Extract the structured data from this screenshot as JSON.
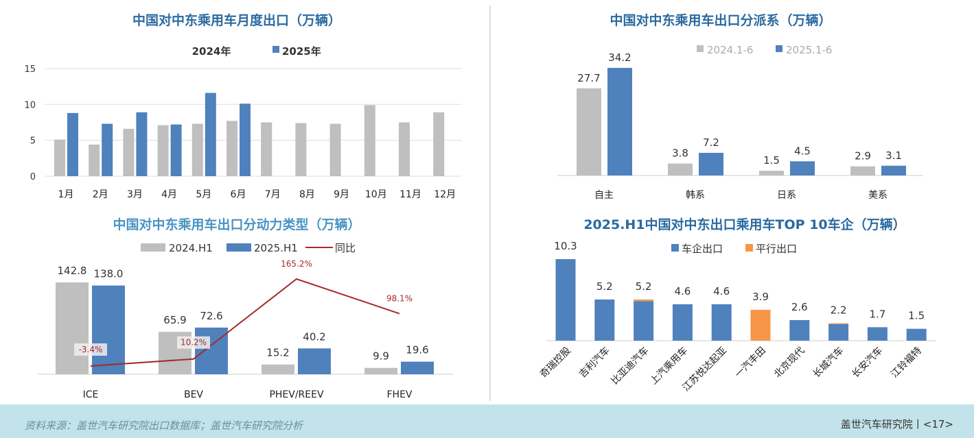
{
  "colors": {
    "gray": "#bfbfbf",
    "blue": "#4f81bd",
    "orange": "#f79646",
    "line": "#a52a2a"
  },
  "chart_data": [
    {
      "type": "bar",
      "title": "中国对中东乘用车月度出口（万辆）",
      "categories": [
        "1月",
        "2月",
        "3月",
        "4月",
        "5月",
        "6月",
        "7月",
        "8月",
        "9月",
        "10月",
        "11月",
        "12月"
      ],
      "series": [
        {
          "name": "2024年",
          "values": [
            5.1,
            4.4,
            6.6,
            7.1,
            7.3,
            7.7,
            7.5,
            7.4,
            7.3,
            9.9,
            7.5,
            8.9
          ]
        },
        {
          "name": "2025年",
          "values": [
            8.8,
            7.3,
            8.9,
            7.2,
            11.6,
            10.1,
            null,
            null,
            null,
            null,
            null,
            null
          ]
        }
      ],
      "yticks": [
        "0",
        "5",
        "10",
        "15"
      ],
      "ylim": [
        0,
        15
      ],
      "grid": true,
      "legend": "top"
    },
    {
      "type": "bar",
      "title": "中国对中东乘用车出口分派系（万辆）",
      "categories": [
        "自主",
        "韩系",
        "日系",
        "美系"
      ],
      "series": [
        {
          "name": "2024.1-6",
          "values": [
            27.7,
            3.8,
            1.5,
            2.9
          ],
          "labels": [
            "27.7",
            "3.8",
            "1.5",
            "2.9"
          ]
        },
        {
          "name": "2025.1-6",
          "values": [
            34.2,
            7.2,
            4.5,
            3.1
          ],
          "labels": [
            "34.2",
            "7.2",
            "4.5",
            "3.1"
          ]
        }
      ],
      "legend": "top"
    },
    {
      "type": "bar",
      "title": "中国对中东乘用车出口分动力类型（万辆）",
      "categories": [
        "ICE",
        "BEV",
        "PHEV/REEV",
        "FHEV"
      ],
      "series": [
        {
          "name": "2024.H1",
          "values": [
            142.8,
            65.9,
            15.2,
            9.9
          ],
          "labels": [
            "142.8",
            "65.9",
            "15.2",
            "9.9"
          ]
        },
        {
          "name": "2025.H1",
          "values": [
            138.0,
            72.6,
            40.2,
            19.6
          ],
          "labels": [
            "138.0",
            "72.6",
            "40.2",
            "19.6"
          ]
        },
        {
          "name": "同比",
          "type": "line",
          "values": [
            -3.4,
            10.2,
            165.2,
            98.1
          ],
          "labels": [
            "-3.4%",
            "10.2%",
            "165.2%",
            "98.1%"
          ]
        }
      ],
      "legend": "top"
    },
    {
      "type": "bar",
      "stacked": true,
      "title": "2025.H1中国对中东出口乘用车TOP 10车企（万辆）",
      "categories": [
        "奇瑞控股",
        "吉利汽车",
        "比亚迪汽车",
        "上汽乘用车",
        "江苏悦达起亚",
        "一汽丰田",
        "北京现代",
        "长城汽车",
        "长安汽车",
        "江铃福特"
      ],
      "series": [
        {
          "name": "车企出口",
          "values": [
            10.3,
            5.2,
            5.0,
            4.6,
            4.6,
            0,
            2.6,
            2.1,
            1.7,
            1.5
          ]
        },
        {
          "name": "平行出口",
          "values": [
            0,
            0,
            0.2,
            0,
            0,
            3.9,
            0,
            0.1,
            0,
            0
          ]
        }
      ],
      "totals": [
        "10.3",
        "5.2",
        "5.2",
        "4.6",
        "4.6",
        "3.9",
        "2.6",
        "2.2",
        "1.7",
        "1.5"
      ],
      "legend": "top"
    }
  ],
  "footer": {
    "source": "资料来源：盖世汽车研究院出口数据库；盖世汽车研究院分析",
    "brand": "盖世汽车研究院丨<17>"
  }
}
